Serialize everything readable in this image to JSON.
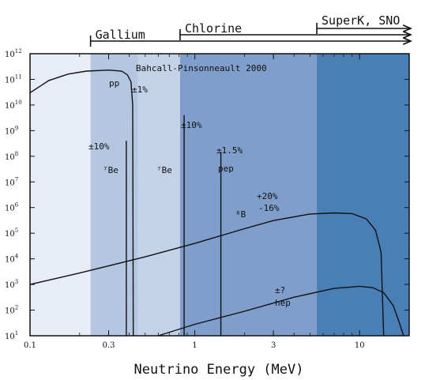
{
  "chart_data": {
    "type": "line",
    "xlabel": "Neutrino Energy (MeV)",
    "ylabel": "",
    "x_scale": "log",
    "y_scale": "log",
    "xlim": [
      0.1,
      20
    ],
    "ylim": [
      10,
      1000000000000
    ],
    "x_ticks": [
      {
        "value": 0.1,
        "label": "0.1"
      },
      {
        "value": 0.3,
        "label": "0.3"
      },
      {
        "value": 1,
        "label": "1"
      },
      {
        "value": 3,
        "label": "3"
      },
      {
        "value": 10,
        "label": "10"
      }
    ],
    "y_ticks": [
      {
        "value": 1000000000000.0,
        "base": "10",
        "exp": "12"
      },
      {
        "value": 100000000000.0,
        "base": "10",
        "exp": "11"
      },
      {
        "value": 10000000000.0,
        "base": "10",
        "exp": "10"
      },
      {
        "value": 1000000000.0,
        "base": "10",
        "exp": "9"
      },
      {
        "value": 100000000.0,
        "base": "10",
        "exp": "8"
      },
      {
        "value": 10000000.0,
        "base": "10",
        "exp": "7"
      },
      {
        "value": 1000000.0,
        "base": "10",
        "exp": "6"
      },
      {
        "value": 100000.0,
        "base": "10",
        "exp": "5"
      },
      {
        "value": 10000.0,
        "base": "10",
        "exp": "4"
      },
      {
        "value": 1000.0,
        "base": "10",
        "exp": "3"
      },
      {
        "value": 100.0,
        "base": "10",
        "exp": "2"
      },
      {
        "value": 10,
        "base": "10",
        "exp": "1"
      }
    ],
    "bands": [
      {
        "from": 0.1,
        "to": 0.233,
        "color": "#e8ecf6"
      },
      {
        "from": 0.233,
        "to": 0.814,
        "color": "#b5c6e0"
      },
      {
        "from": 0.814,
        "to": 5.5,
        "color": "#7f9ecb"
      },
      {
        "from": 5.5,
        "to": 20,
        "color": "#4a7fb6"
      }
    ],
    "inner_band": {
      "from": 0.45,
      "to": 0.814,
      "color": "#c4d2e8"
    },
    "thresholds": [
      {
        "label": "Gallium",
        "x": 0.233
      },
      {
        "label": "Chlorine",
        "x": 0.814
      },
      {
        "label": "SuperK, SNO",
        "x": 5.5
      }
    ],
    "annotations": {
      "source": "Bahcall-Pinsonneault 2000",
      "pp": "pp",
      "pp_err": "±1%",
      "be7_left": "⁷Be",
      "be7_left_err": "±10%",
      "be7_right": "⁷Be",
      "be7_right_err": "±10%",
      "pep": "pep",
      "pep_err": "±1.5%",
      "b8": "⁸B",
      "b8_err_plus": "+20%",
      "b8_err_minus": "-16%",
      "hep": "hep",
      "hep_err": "±?"
    },
    "series": [
      {
        "points": [
          [
            0.1,
            30000000000.0
          ],
          [
            0.13,
            90000000000.0
          ],
          [
            0.17,
            160000000000.0
          ],
          [
            0.22,
            210000000000.0
          ],
          [
            0.3,
            230000000000.0
          ],
          [
            0.36,
            210000000000.0
          ],
          [
            0.39,
            150000000000.0
          ],
          [
            0.41,
            80000000000.0
          ],
          [
            0.42,
            10000000000.0
          ],
          [
            0.423,
            10
          ]
        ]
      },
      {
        "points": [
          [
            0.384,
            10
          ],
          [
            0.384,
            400000000.0
          ]
        ]
      },
      {
        "points": [
          [
            0.862,
            10
          ],
          [
            0.862,
            4000000000.0
          ]
        ]
      },
      {
        "points": [
          [
            1.44,
            10
          ],
          [
            1.44,
            150000000.0
          ]
        ]
      },
      {
        "points": [
          [
            0.1,
            1000.0
          ],
          [
            0.2,
            2800.0
          ],
          [
            0.5,
            12000.0
          ],
          [
            1,
            40000.0
          ],
          [
            2,
            150000.0
          ],
          [
            3,
            310000.0
          ],
          [
            5,
            560000.0
          ],
          [
            7,
            620000.0
          ],
          [
            9,
            580000.0
          ],
          [
            11,
            360000.0
          ],
          [
            12.5,
            130000.0
          ],
          [
            13.5,
            18000.0
          ],
          [
            14,
            10
          ]
        ]
      },
      {
        "points": [
          [
            0.6,
            10
          ],
          [
            1,
            28.0
          ],
          [
            2,
            90.0
          ],
          [
            4,
            320.0
          ],
          [
            7,
            700.0
          ],
          [
            10,
            850.0
          ],
          [
            12,
            760.0
          ],
          [
            14,
            480.0
          ],
          [
            16,
            150.0
          ],
          [
            17.5,
            30.0
          ],
          [
            18.5,
            10
          ]
        ]
      }
    ]
  }
}
